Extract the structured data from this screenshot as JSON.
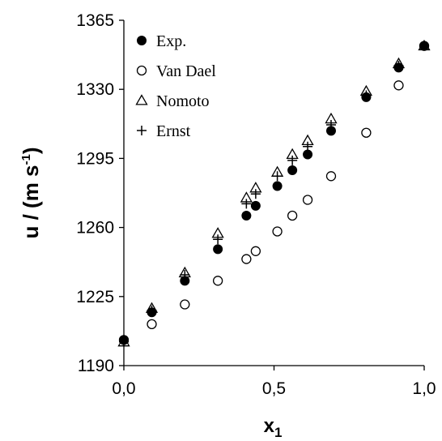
{
  "chart_data": {
    "type": "scatter",
    "title": "",
    "xlabel": "x",
    "xlabel_sub": "1",
    "ylabel": "u / (m s",
    "ylabel_sup": "-1",
    "ylabel_close": ")",
    "xlim": [
      0,
      1
    ],
    "ylim": [
      1190,
      1365
    ],
    "x_ticks": [
      0,
      0.5,
      1
    ],
    "x_tick_labels": [
      "0,0",
      "0,5",
      "1,0"
    ],
    "y_ticks": [
      1190,
      1225,
      1260,
      1295,
      1330,
      1365
    ],
    "y_tick_labels": [
      "1190",
      "1225",
      "1260",
      "1295",
      "1330",
      "1365"
    ],
    "grid": false,
    "legend_position": "top-left",
    "series": [
      {
        "name": "Exp.",
        "marker": "filled-circle",
        "points": [
          [
            0,
            1203
          ],
          [
            0.093,
            1217
          ],
          [
            0.203,
            1233
          ],
          [
            0.313,
            1249
          ],
          [
            0.408,
            1266
          ],
          [
            0.439,
            1271
          ],
          [
            0.511,
            1281
          ],
          [
            0.561,
            1289
          ],
          [
            0.612,
            1297
          ],
          [
            0.69,
            1309
          ],
          [
            0.807,
            1326
          ],
          [
            0.915,
            1341
          ],
          [
            1,
            1352
          ]
        ]
      },
      {
        "name": "Van Dael",
        "marker": "open-circle",
        "points": [
          [
            0,
            1203
          ],
          [
            0.093,
            1211
          ],
          [
            0.203,
            1221
          ],
          [
            0.313,
            1233
          ],
          [
            0.408,
            1244
          ],
          [
            0.439,
            1248
          ],
          [
            0.511,
            1258
          ],
          [
            0.561,
            1266
          ],
          [
            0.612,
            1274
          ],
          [
            0.69,
            1286
          ],
          [
            0.807,
            1308
          ],
          [
            0.915,
            1332
          ],
          [
            1,
            1352
          ]
        ]
      },
      {
        "name": "Nomoto",
        "marker": "open-triangle",
        "points": [
          [
            0,
            1202
          ],
          [
            0.093,
            1219
          ],
          [
            0.203,
            1237
          ],
          [
            0.313,
            1257
          ],
          [
            0.408,
            1275
          ],
          [
            0.439,
            1280
          ],
          [
            0.511,
            1288
          ],
          [
            0.561,
            1297
          ],
          [
            0.612,
            1304
          ],
          [
            0.69,
            1315
          ],
          [
            0.807,
            1329
          ],
          [
            0.915,
            1343
          ],
          [
            1,
            1352
          ]
        ]
      },
      {
        "name": "Ernst",
        "marker": "plus",
        "points": [
          [
            0,
            1202
          ],
          [
            0.093,
            1218
          ],
          [
            0.203,
            1236
          ],
          [
            0.313,
            1254
          ],
          [
            0.408,
            1272
          ],
          [
            0.439,
            1277
          ],
          [
            0.511,
            1286
          ],
          [
            0.561,
            1294
          ],
          [
            0.612,
            1301
          ],
          [
            0.69,
            1312
          ],
          [
            0.807,
            1327
          ],
          [
            0.915,
            1342
          ],
          [
            1,
            1352
          ]
        ]
      }
    ]
  }
}
